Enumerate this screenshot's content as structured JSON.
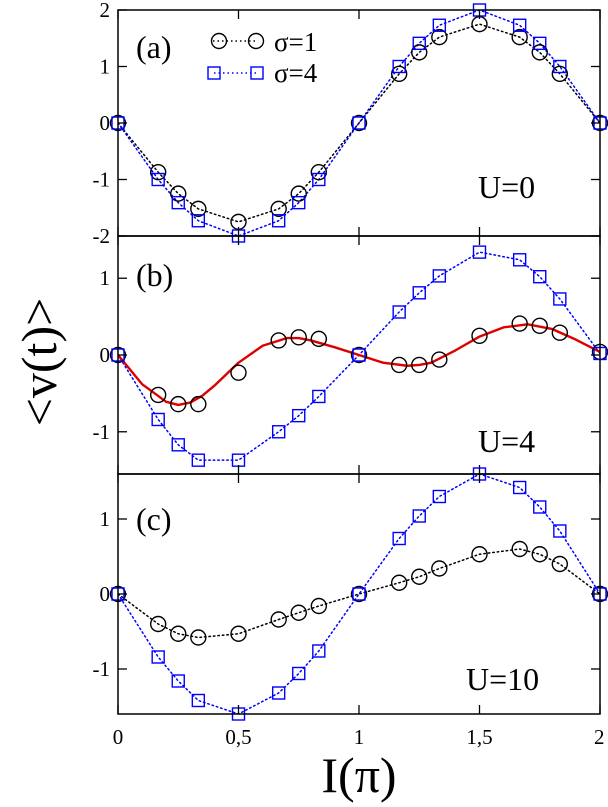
{
  "figure": {
    "ylabel": "<v(t)>",
    "xlabel": "I(π)",
    "legend_placement": "top-left of panel (a)"
  },
  "chart_data": [
    {
      "type": "line",
      "panel_label": "(a)",
      "annotation": "U=0",
      "xlim": [
        0,
        2
      ],
      "ylim": [
        -2,
        2
      ],
      "x_ticks": [
        0,
        0.5,
        1,
        1.5,
        2
      ],
      "x_tick_labels": [
        "0",
        "0,5",
        "1",
        "1,5",
        "2"
      ],
      "y_ticks": [
        -2,
        -1,
        0,
        1,
        2
      ],
      "y_tick_labels": [
        "-2",
        "-1",
        "0",
        "1",
        "2"
      ],
      "legend": [
        "σ=1",
        "σ=4"
      ],
      "series": [
        {
          "name": "σ=1",
          "color": "#000000",
          "marker": "circle",
          "line": "dotted",
          "x": [
            0,
            0.1667,
            0.25,
            0.3333,
            0.5,
            0.6667,
            0.75,
            0.8333,
            1,
            1.1667,
            1.25,
            1.3333,
            1.5,
            1.6667,
            1.75,
            1.8333,
            2
          ],
          "y": [
            0,
            -0.87,
            -1.25,
            -1.52,
            -1.75,
            -1.52,
            -1.25,
            -0.87,
            0,
            0.87,
            1.25,
            1.52,
            1.75,
            1.52,
            1.25,
            0.87,
            0
          ]
        },
        {
          "name": "σ=4",
          "color": "#0000ff",
          "marker": "square",
          "line": "dotted",
          "x": [
            0,
            0.1667,
            0.25,
            0.3333,
            0.5,
            0.6667,
            0.75,
            0.8333,
            1,
            1.1667,
            1.25,
            1.3333,
            1.5,
            1.6667,
            1.75,
            1.8333,
            2
          ],
          "y": [
            0,
            -1.0,
            -1.41,
            -1.73,
            -2.0,
            -1.73,
            -1.41,
            -1.0,
            0,
            1.0,
            1.41,
            1.73,
            2.0,
            1.73,
            1.41,
            1.0,
            0
          ]
        }
      ]
    },
    {
      "type": "line",
      "panel_label": "(b)",
      "annotation": "U=4",
      "xlim": [
        0,
        2
      ],
      "ylim": [
        -1.55,
        1.55
      ],
      "x_ticks": [
        0,
        0.5,
        1,
        1.5,
        2
      ],
      "y_ticks": [
        -1,
        0,
        1
      ],
      "y_tick_labels": [
        "-1",
        "0",
        "1"
      ],
      "series": [
        {
          "name": "σ=1",
          "color": "#000000",
          "marker": "circle",
          "line": "none",
          "x": [
            0,
            0.1667,
            0.25,
            0.3333,
            0.5,
            0.6667,
            0.75,
            0.8333,
            1,
            1.1667,
            1.25,
            1.3333,
            1.5,
            1.6667,
            1.75,
            1.8333,
            2
          ],
          "y": [
            0,
            -0.52,
            -0.64,
            -0.64,
            -0.23,
            0.19,
            0.23,
            0.21,
            0,
            -0.13,
            -0.13,
            -0.06,
            0.25,
            0.41,
            0.38,
            0.29,
            0.04
          ]
        },
        {
          "name": "σ=4",
          "color": "#0000ff",
          "marker": "square",
          "line": "dotted",
          "x": [
            0,
            0.1667,
            0.25,
            0.3333,
            0.5,
            0.6667,
            0.75,
            0.8333,
            1,
            1.1667,
            1.25,
            1.3333,
            1.5,
            1.6667,
            1.75,
            1.8333,
            2
          ],
          "y": [
            0,
            -0.84,
            -1.17,
            -1.37,
            -1.37,
            -1.0,
            -0.79,
            -0.54,
            0,
            0.56,
            0.81,
            1.03,
            1.34,
            1.24,
            1.02,
            0.73,
            0.02
          ]
        },
        {
          "name": "",
          "color": "#dd0000",
          "marker": "none",
          "line": "solid",
          "x": [
            0,
            0.1,
            0.2,
            0.25,
            0.3,
            0.35,
            0.4,
            0.5,
            0.6,
            0.7,
            0.75,
            0.8,
            0.9,
            1,
            1.1,
            1.2,
            1.25,
            1.3,
            1.4,
            1.5,
            1.6,
            1.7,
            1.8,
            1.9,
            2
          ],
          "y": [
            0,
            -0.38,
            -0.61,
            -0.65,
            -0.62,
            -0.53,
            -0.4,
            -0.1,
            0.12,
            0.22,
            0.22,
            0.19,
            0.1,
            0.0,
            -0.1,
            -0.14,
            -0.13,
            -0.1,
            0.06,
            0.24,
            0.36,
            0.4,
            0.34,
            0.2,
            0.04
          ]
        }
      ]
    },
    {
      "type": "line",
      "panel_label": "(c)",
      "annotation": "U=10",
      "xlim": [
        0,
        2
      ],
      "ylim": [
        -1.6,
        1.6
      ],
      "x_ticks": [
        0,
        0.5,
        1,
        1.5,
        2
      ],
      "x_tick_labels": [
        "0",
        "0,5",
        "1",
        "1,5",
        "2"
      ],
      "y_ticks": [
        -1,
        0,
        1
      ],
      "y_tick_labels": [
        "-1",
        "0",
        "1"
      ],
      "series": [
        {
          "name": "σ=1",
          "color": "#000000",
          "marker": "circle",
          "line": "dotted",
          "x": [
            0,
            0.1667,
            0.25,
            0.3333,
            0.5,
            0.6667,
            0.75,
            0.8333,
            1,
            1.1667,
            1.25,
            1.3333,
            1.5,
            1.6667,
            1.75,
            1.8333,
            2
          ],
          "y": [
            0,
            -0.4,
            -0.53,
            -0.58,
            -0.53,
            -0.34,
            -0.25,
            -0.16,
            0,
            0.15,
            0.23,
            0.34,
            0.53,
            0.6,
            0.53,
            0.4,
            0
          ]
        },
        {
          "name": "σ=4",
          "color": "#0000ff",
          "marker": "square",
          "line": "dotted",
          "x": [
            0,
            0.1667,
            0.25,
            0.3333,
            0.5,
            0.6667,
            0.75,
            0.8333,
            1,
            1.1667,
            1.25,
            1.3333,
            1.5,
            1.6667,
            1.75,
            1.8333,
            2
          ],
          "y": [
            0,
            -0.84,
            -1.16,
            -1.42,
            -1.6,
            -1.32,
            -1.06,
            -0.76,
            0,
            0.74,
            1.04,
            1.3,
            1.6,
            1.42,
            1.16,
            0.84,
            0
          ]
        }
      ]
    }
  ]
}
